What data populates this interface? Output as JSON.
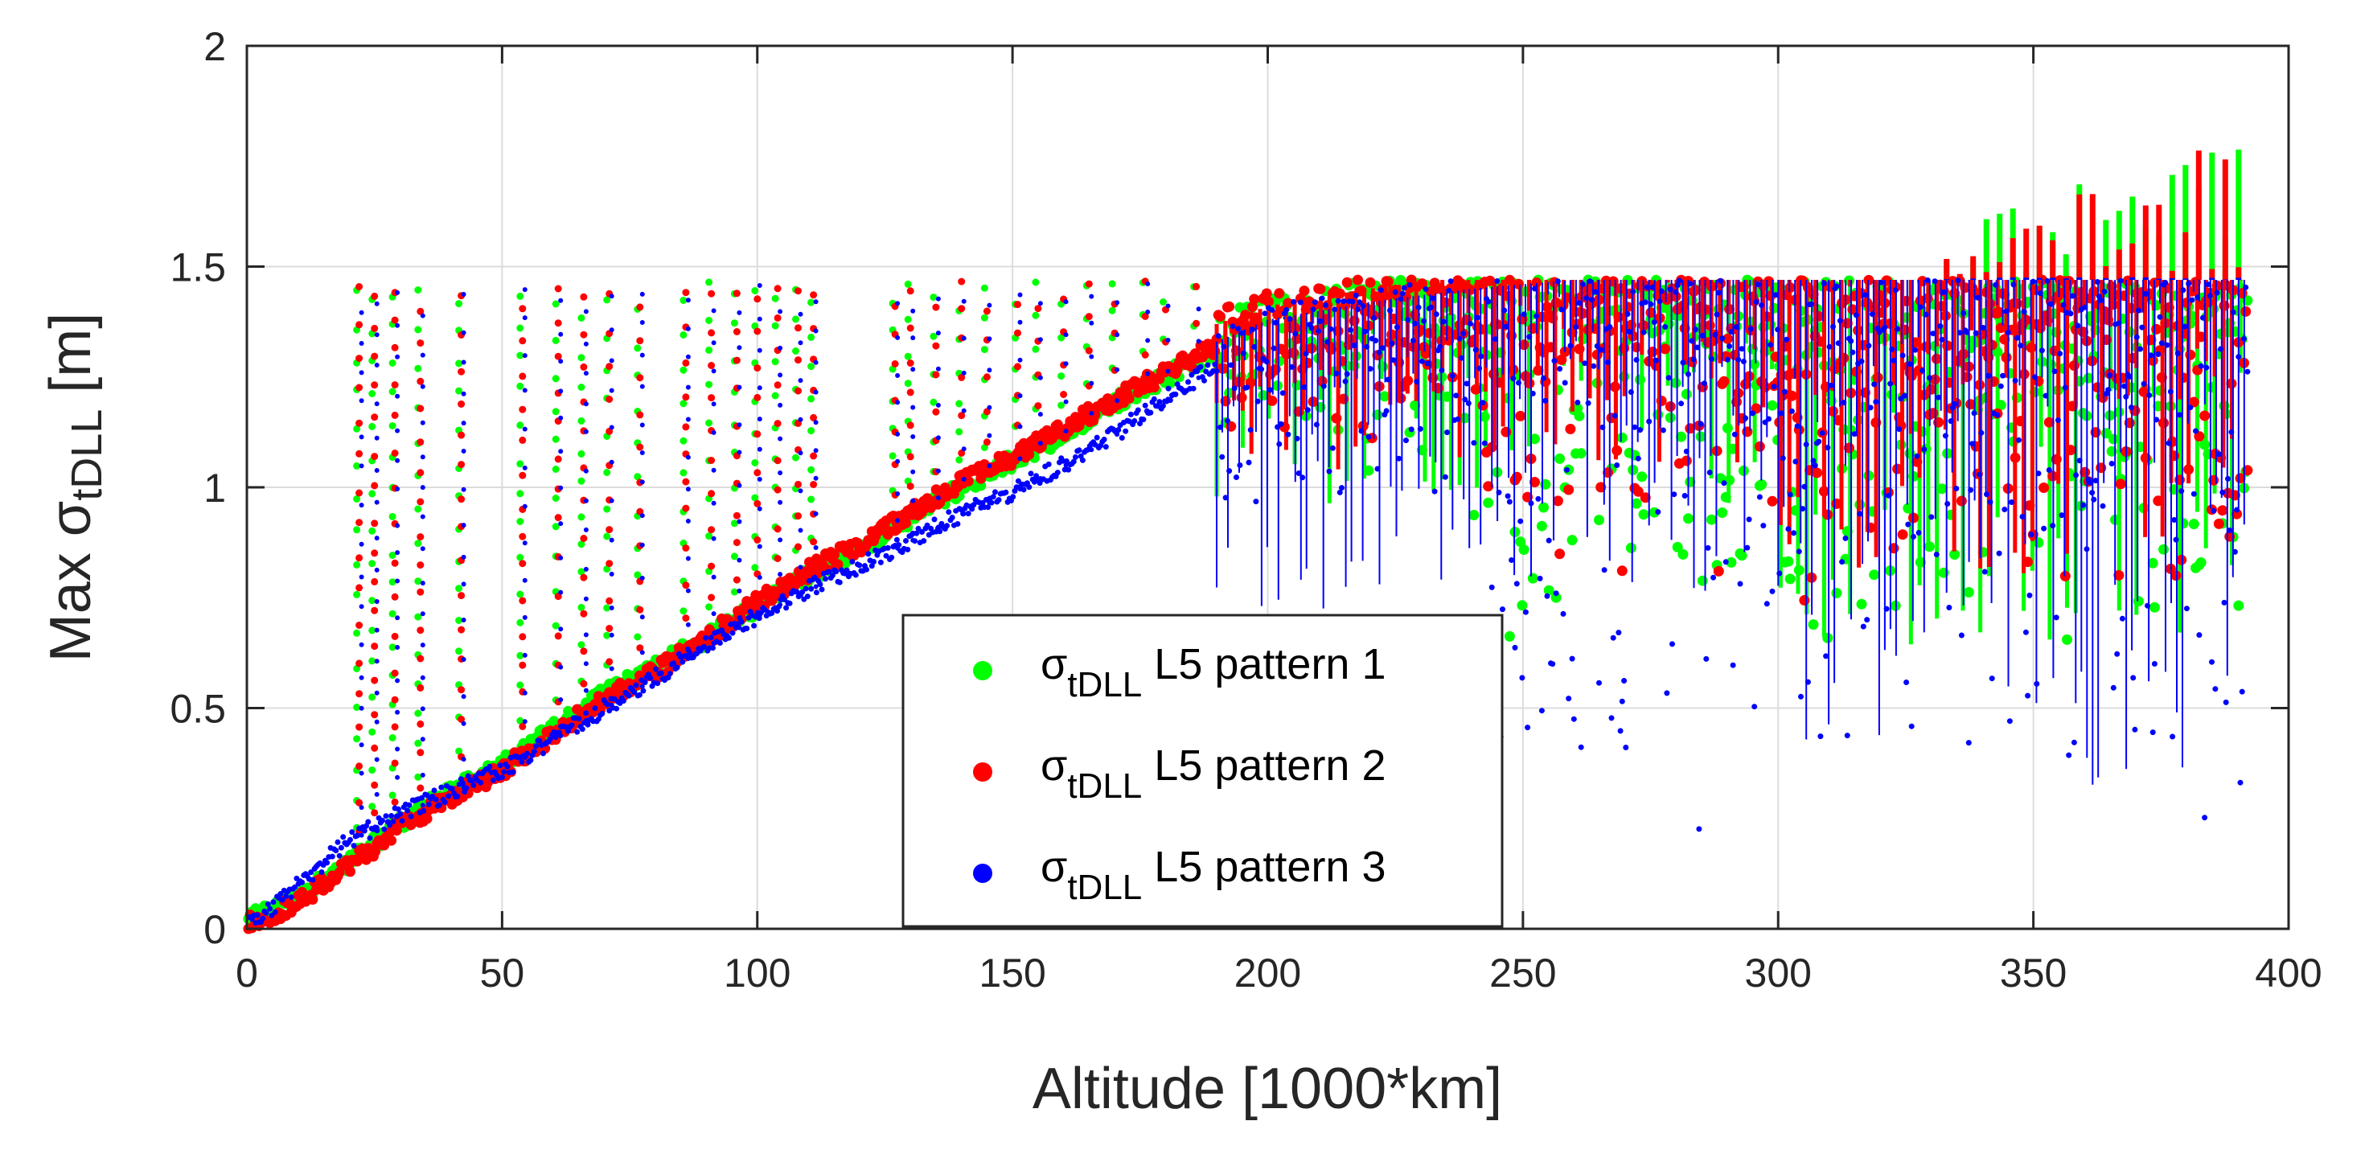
{
  "chart_data": {
    "type": "scatter",
    "title": "",
    "xlabel": "Altitude [1000*km]",
    "ylabel": {
      "prefix": "Max σ",
      "subscript": "tDLL",
      "suffix": " [m]"
    },
    "xlim": [
      0,
      400
    ],
    "ylim": [
      0,
      2
    ],
    "xticks": [
      0,
      50,
      100,
      150,
      200,
      250,
      300,
      350,
      400
    ],
    "yticks": [
      0,
      0.5,
      1,
      1.5,
      2
    ],
    "xtick_labels": [
      "0",
      "50",
      "100",
      "150",
      "200",
      "250",
      "300",
      "350",
      "400"
    ],
    "ytick_labels": [
      "0",
      "0.5",
      "1",
      "1.5",
      "2"
    ],
    "grid": true,
    "legend_position": "lower-center",
    "series": [
      {
        "name": "σtDLL L5 pattern 1",
        "legend_symbol": "σ",
        "legend_sub": "tDLL",
        "legend_rest": " L5 pattern 1",
        "color": "#00ff00",
        "trend_x": [
          0,
          5,
          10,
          20,
          30,
          40,
          50,
          60,
          70,
          80,
          90,
          100,
          110,
          120,
          130,
          140,
          150,
          160,
          170,
          180,
          190,
          200,
          220,
          240,
          260,
          280,
          300,
          320,
          340,
          360,
          380,
          392
        ],
        "trend_y": [
          0.02,
          0.04,
          0.07,
          0.15,
          0.24,
          0.31,
          0.37,
          0.45,
          0.53,
          0.59,
          0.66,
          0.73,
          0.8,
          0.86,
          0.93,
          1.0,
          1.06,
          1.12,
          1.19,
          1.25,
          1.31,
          1.35,
          1.39,
          1.42,
          1.44,
          1.45,
          1.46,
          1.46,
          1.46,
          1.47,
          1.47,
          1.47
        ],
        "spread_min_y": 0.55,
        "max_y": 1.8
      },
      {
        "name": "σtDLL L5 pattern 2",
        "legend_symbol": "σ",
        "legend_sub": "tDLL",
        "legend_rest": " L5 pattern 2",
        "color": "#ff0000",
        "trend_x": [
          0,
          5,
          10,
          20,
          30,
          40,
          50,
          60,
          70,
          80,
          90,
          100,
          110,
          120,
          130,
          140,
          150,
          160,
          170,
          180,
          190,
          200,
          220,
          240,
          260,
          280,
          300,
          320,
          340,
          360,
          380,
          392
        ],
        "trend_y": [
          0.01,
          0.03,
          0.06,
          0.14,
          0.23,
          0.3,
          0.36,
          0.44,
          0.52,
          0.58,
          0.66,
          0.74,
          0.81,
          0.87,
          0.94,
          1.01,
          1.07,
          1.13,
          1.2,
          1.26,
          1.32,
          1.36,
          1.4,
          1.43,
          1.45,
          1.46,
          1.46,
          1.46,
          1.46,
          1.47,
          1.47,
          1.47
        ],
        "spread_min_y": 0.7,
        "max_y": 1.8
      },
      {
        "name": "σtDLL L5 pattern 3",
        "legend_symbol": "σ",
        "legend_sub": "tDLL",
        "legend_rest": " L5 pattern 3",
        "color": "#0000ff",
        "trend_x": [
          0,
          5,
          10,
          20,
          30,
          40,
          50,
          60,
          70,
          80,
          90,
          100,
          110,
          120,
          130,
          140,
          150,
          160,
          170,
          180,
          190,
          200,
          220,
          240,
          260,
          280,
          300,
          320,
          340,
          360,
          380,
          392
        ],
        "trend_y": [
          0.01,
          0.05,
          0.1,
          0.2,
          0.26,
          0.31,
          0.36,
          0.43,
          0.5,
          0.57,
          0.64,
          0.71,
          0.77,
          0.82,
          0.88,
          0.94,
          0.99,
          1.05,
          1.12,
          1.2,
          1.28,
          1.33,
          1.37,
          1.4,
          1.42,
          1.43,
          1.44,
          1.45,
          1.45,
          1.45,
          1.45,
          1.45
        ],
        "spread_min_y": 0.17,
        "max_y": 1.48
      }
    ],
    "saturation_level": 1.47,
    "sparse_column_x": [
      22,
      25,
      29,
      34,
      42,
      54,
      61,
      66,
      71,
      77,
      86,
      91,
      96,
      100,
      104,
      108,
      111,
      127,
      130,
      135,
      140,
      145,
      151,
      155,
      160,
      165,
      170,
      176,
      180,
      186
    ]
  }
}
